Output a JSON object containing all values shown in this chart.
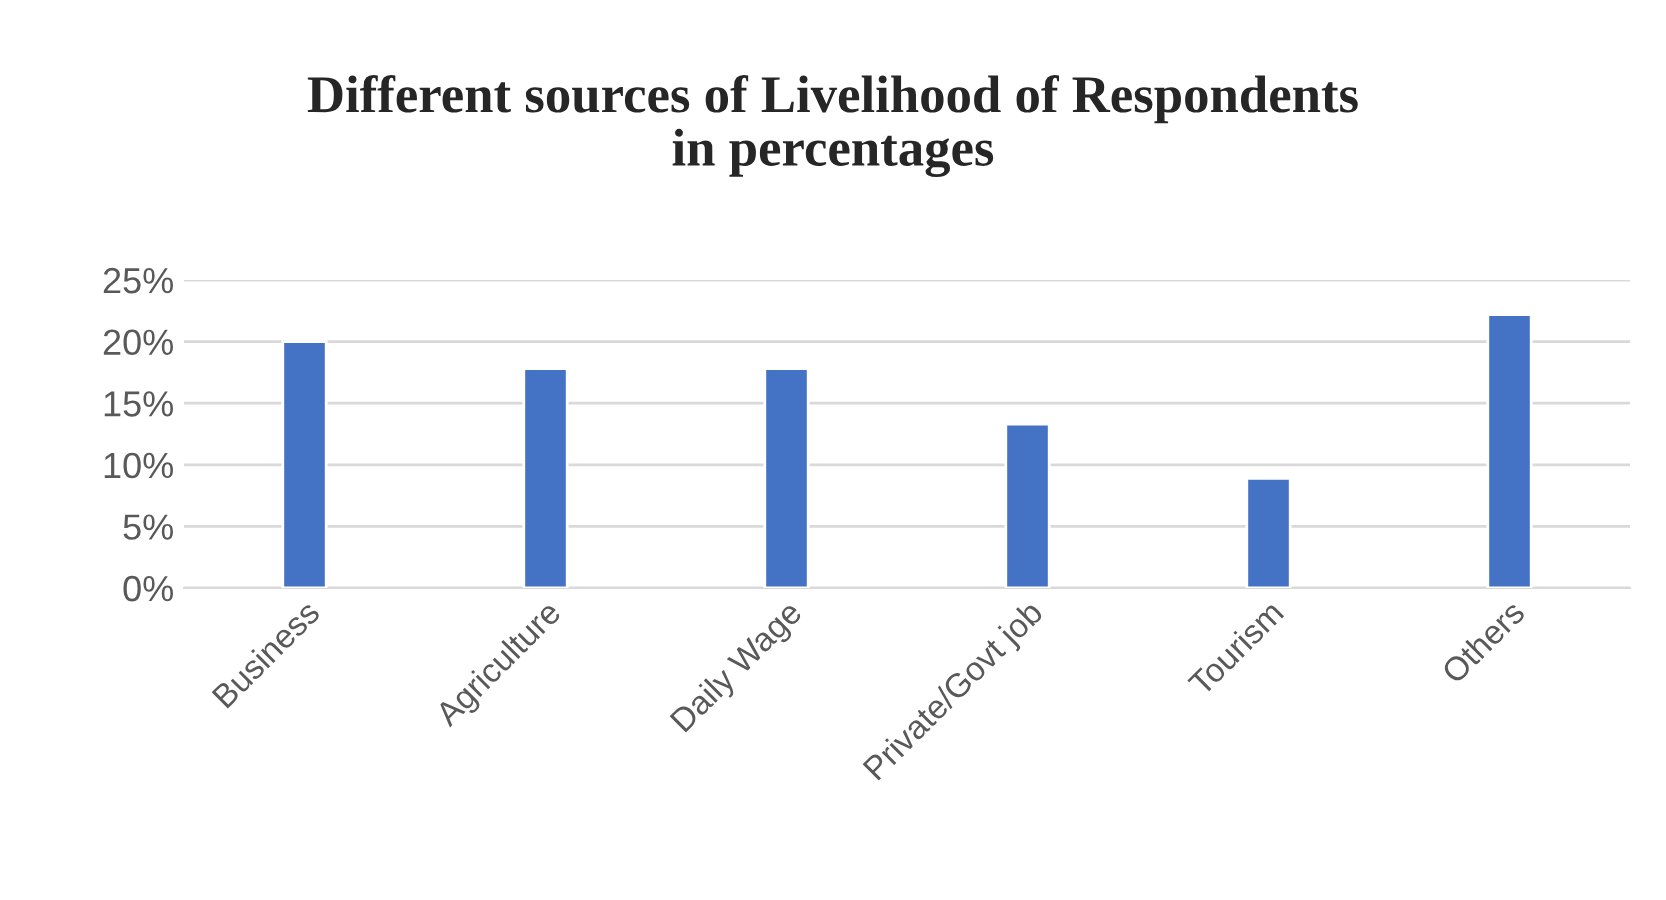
{
  "chart_data": {
    "type": "bar",
    "title": "Different sources of Livelihood of Respondents\nin percentages",
    "categories": [
      "Business",
      "Agriculture",
      "Daily Wage",
      "Private/Govt job",
      "Tourism",
      "Others"
    ],
    "values": [
      20,
      17.8,
      17.8,
      13.3,
      8.9,
      22.2
    ],
    "color": "#4472c4",
    "ylim": [
      0,
      25
    ],
    "yticks": [
      {
        "value": 0,
        "label": "0%"
      },
      {
        "value": 5,
        "label": "5%"
      },
      {
        "value": 10,
        "label": "10%"
      },
      {
        "value": 15,
        "label": "15%"
      },
      {
        "value": 20,
        "label": "20%"
      },
      {
        "value": 25,
        "label": "25%"
      }
    ],
    "grid": "y",
    "legend": false
  }
}
